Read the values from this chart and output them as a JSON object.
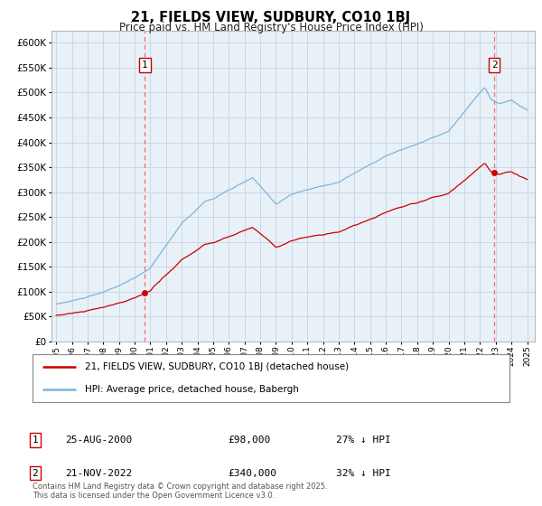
{
  "title": "21, FIELDS VIEW, SUDBURY, CO10 1BJ",
  "subtitle": "Price paid vs. HM Land Registry's House Price Index (HPI)",
  "background_color": "#ffffff",
  "plot_bg_color": "#e8f0f8",
  "hpi_color": "#7ab3d8",
  "price_color": "#cc0000",
  "marker_color": "#cc0000",
  "vline_color": "#ff5555",
  "ylim": [
    0,
    620000
  ],
  "yticks": [
    0,
    50000,
    100000,
    150000,
    200000,
    250000,
    300000,
    350000,
    400000,
    450000,
    500000,
    550000,
    600000
  ],
  "legend_label_red": "21, FIELDS VIEW, SUDBURY, CO10 1BJ (detached house)",
  "legend_label_blue": "HPI: Average price, detached house, Babergh",
  "annotation1_label": "1",
  "annotation1_date": "25-AUG-2000",
  "annotation1_price": "£98,000",
  "annotation1_hpi": "27% ↓ HPI",
  "annotation2_label": "2",
  "annotation2_date": "21-NOV-2022",
  "annotation2_price": "£340,000",
  "annotation2_hpi": "32% ↓ HPI",
  "footnote": "Contains HM Land Registry data © Crown copyright and database right 2025.\nThis data is licensed under the Open Government Licence v3.0.",
  "sale1_x": 2000.65,
  "sale1_y": 98000,
  "sale2_x": 2022.9,
  "sale2_y": 340000,
  "xmin": 1995,
  "xmax": 2025
}
